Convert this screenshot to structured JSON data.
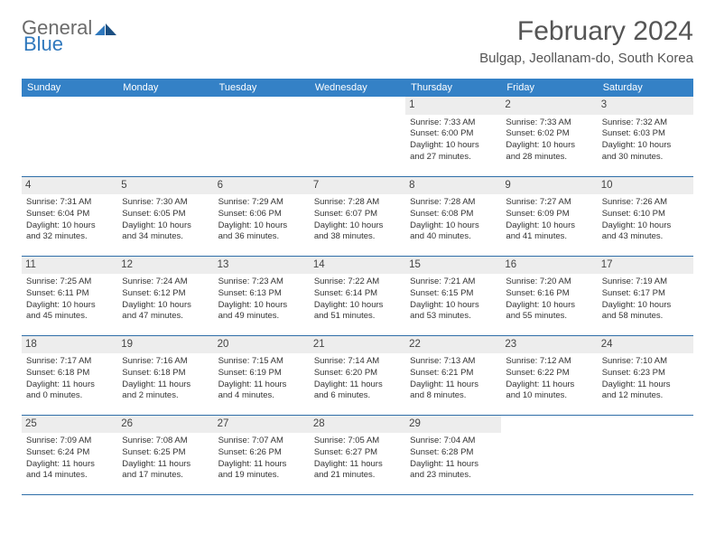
{
  "logo": {
    "general": "General",
    "blue": "Blue"
  },
  "title": "February 2024",
  "location": "Bulgap, Jeollanam-do, South Korea",
  "colors": {
    "header_bg": "#3481c6",
    "header_text": "#ffffff",
    "border": "#2f6ea8",
    "daynum_bg": "#ededed",
    "body_text": "#333333",
    "title_text": "#555555",
    "logo_gray": "#6b6b6b",
    "logo_blue": "#2f78bd"
  },
  "weekdays": [
    "Sunday",
    "Monday",
    "Tuesday",
    "Wednesday",
    "Thursday",
    "Friday",
    "Saturday"
  ],
  "weeks": [
    [
      null,
      null,
      null,
      null,
      {
        "n": "1",
        "l1": "Sunrise: 7:33 AM",
        "l2": "Sunset: 6:00 PM",
        "l3": "Daylight: 10 hours",
        "l4": "and 27 minutes."
      },
      {
        "n": "2",
        "l1": "Sunrise: 7:33 AM",
        "l2": "Sunset: 6:02 PM",
        "l3": "Daylight: 10 hours",
        "l4": "and 28 minutes."
      },
      {
        "n": "3",
        "l1": "Sunrise: 7:32 AM",
        "l2": "Sunset: 6:03 PM",
        "l3": "Daylight: 10 hours",
        "l4": "and 30 minutes."
      }
    ],
    [
      {
        "n": "4",
        "l1": "Sunrise: 7:31 AM",
        "l2": "Sunset: 6:04 PM",
        "l3": "Daylight: 10 hours",
        "l4": "and 32 minutes."
      },
      {
        "n": "5",
        "l1": "Sunrise: 7:30 AM",
        "l2": "Sunset: 6:05 PM",
        "l3": "Daylight: 10 hours",
        "l4": "and 34 minutes."
      },
      {
        "n": "6",
        "l1": "Sunrise: 7:29 AM",
        "l2": "Sunset: 6:06 PM",
        "l3": "Daylight: 10 hours",
        "l4": "and 36 minutes."
      },
      {
        "n": "7",
        "l1": "Sunrise: 7:28 AM",
        "l2": "Sunset: 6:07 PM",
        "l3": "Daylight: 10 hours",
        "l4": "and 38 minutes."
      },
      {
        "n": "8",
        "l1": "Sunrise: 7:28 AM",
        "l2": "Sunset: 6:08 PM",
        "l3": "Daylight: 10 hours",
        "l4": "and 40 minutes."
      },
      {
        "n": "9",
        "l1": "Sunrise: 7:27 AM",
        "l2": "Sunset: 6:09 PM",
        "l3": "Daylight: 10 hours",
        "l4": "and 41 minutes."
      },
      {
        "n": "10",
        "l1": "Sunrise: 7:26 AM",
        "l2": "Sunset: 6:10 PM",
        "l3": "Daylight: 10 hours",
        "l4": "and 43 minutes."
      }
    ],
    [
      {
        "n": "11",
        "l1": "Sunrise: 7:25 AM",
        "l2": "Sunset: 6:11 PM",
        "l3": "Daylight: 10 hours",
        "l4": "and 45 minutes."
      },
      {
        "n": "12",
        "l1": "Sunrise: 7:24 AM",
        "l2": "Sunset: 6:12 PM",
        "l3": "Daylight: 10 hours",
        "l4": "and 47 minutes."
      },
      {
        "n": "13",
        "l1": "Sunrise: 7:23 AM",
        "l2": "Sunset: 6:13 PM",
        "l3": "Daylight: 10 hours",
        "l4": "and 49 minutes."
      },
      {
        "n": "14",
        "l1": "Sunrise: 7:22 AM",
        "l2": "Sunset: 6:14 PM",
        "l3": "Daylight: 10 hours",
        "l4": "and 51 minutes."
      },
      {
        "n": "15",
        "l1": "Sunrise: 7:21 AM",
        "l2": "Sunset: 6:15 PM",
        "l3": "Daylight: 10 hours",
        "l4": "and 53 minutes."
      },
      {
        "n": "16",
        "l1": "Sunrise: 7:20 AM",
        "l2": "Sunset: 6:16 PM",
        "l3": "Daylight: 10 hours",
        "l4": "and 55 minutes."
      },
      {
        "n": "17",
        "l1": "Sunrise: 7:19 AM",
        "l2": "Sunset: 6:17 PM",
        "l3": "Daylight: 10 hours",
        "l4": "and 58 minutes."
      }
    ],
    [
      {
        "n": "18",
        "l1": "Sunrise: 7:17 AM",
        "l2": "Sunset: 6:18 PM",
        "l3": "Daylight: 11 hours",
        "l4": "and 0 minutes."
      },
      {
        "n": "19",
        "l1": "Sunrise: 7:16 AM",
        "l2": "Sunset: 6:18 PM",
        "l3": "Daylight: 11 hours",
        "l4": "and 2 minutes."
      },
      {
        "n": "20",
        "l1": "Sunrise: 7:15 AM",
        "l2": "Sunset: 6:19 PM",
        "l3": "Daylight: 11 hours",
        "l4": "and 4 minutes."
      },
      {
        "n": "21",
        "l1": "Sunrise: 7:14 AM",
        "l2": "Sunset: 6:20 PM",
        "l3": "Daylight: 11 hours",
        "l4": "and 6 minutes."
      },
      {
        "n": "22",
        "l1": "Sunrise: 7:13 AM",
        "l2": "Sunset: 6:21 PM",
        "l3": "Daylight: 11 hours",
        "l4": "and 8 minutes."
      },
      {
        "n": "23",
        "l1": "Sunrise: 7:12 AM",
        "l2": "Sunset: 6:22 PM",
        "l3": "Daylight: 11 hours",
        "l4": "and 10 minutes."
      },
      {
        "n": "24",
        "l1": "Sunrise: 7:10 AM",
        "l2": "Sunset: 6:23 PM",
        "l3": "Daylight: 11 hours",
        "l4": "and 12 minutes."
      }
    ],
    [
      {
        "n": "25",
        "l1": "Sunrise: 7:09 AM",
        "l2": "Sunset: 6:24 PM",
        "l3": "Daylight: 11 hours",
        "l4": "and 14 minutes."
      },
      {
        "n": "26",
        "l1": "Sunrise: 7:08 AM",
        "l2": "Sunset: 6:25 PM",
        "l3": "Daylight: 11 hours",
        "l4": "and 17 minutes."
      },
      {
        "n": "27",
        "l1": "Sunrise: 7:07 AM",
        "l2": "Sunset: 6:26 PM",
        "l3": "Daylight: 11 hours",
        "l4": "and 19 minutes."
      },
      {
        "n": "28",
        "l1": "Sunrise: 7:05 AM",
        "l2": "Sunset: 6:27 PM",
        "l3": "Daylight: 11 hours",
        "l4": "and 21 minutes."
      },
      {
        "n": "29",
        "l1": "Sunrise: 7:04 AM",
        "l2": "Sunset: 6:28 PM",
        "l3": "Daylight: 11 hours",
        "l4": "and 23 minutes."
      },
      null,
      null
    ]
  ]
}
